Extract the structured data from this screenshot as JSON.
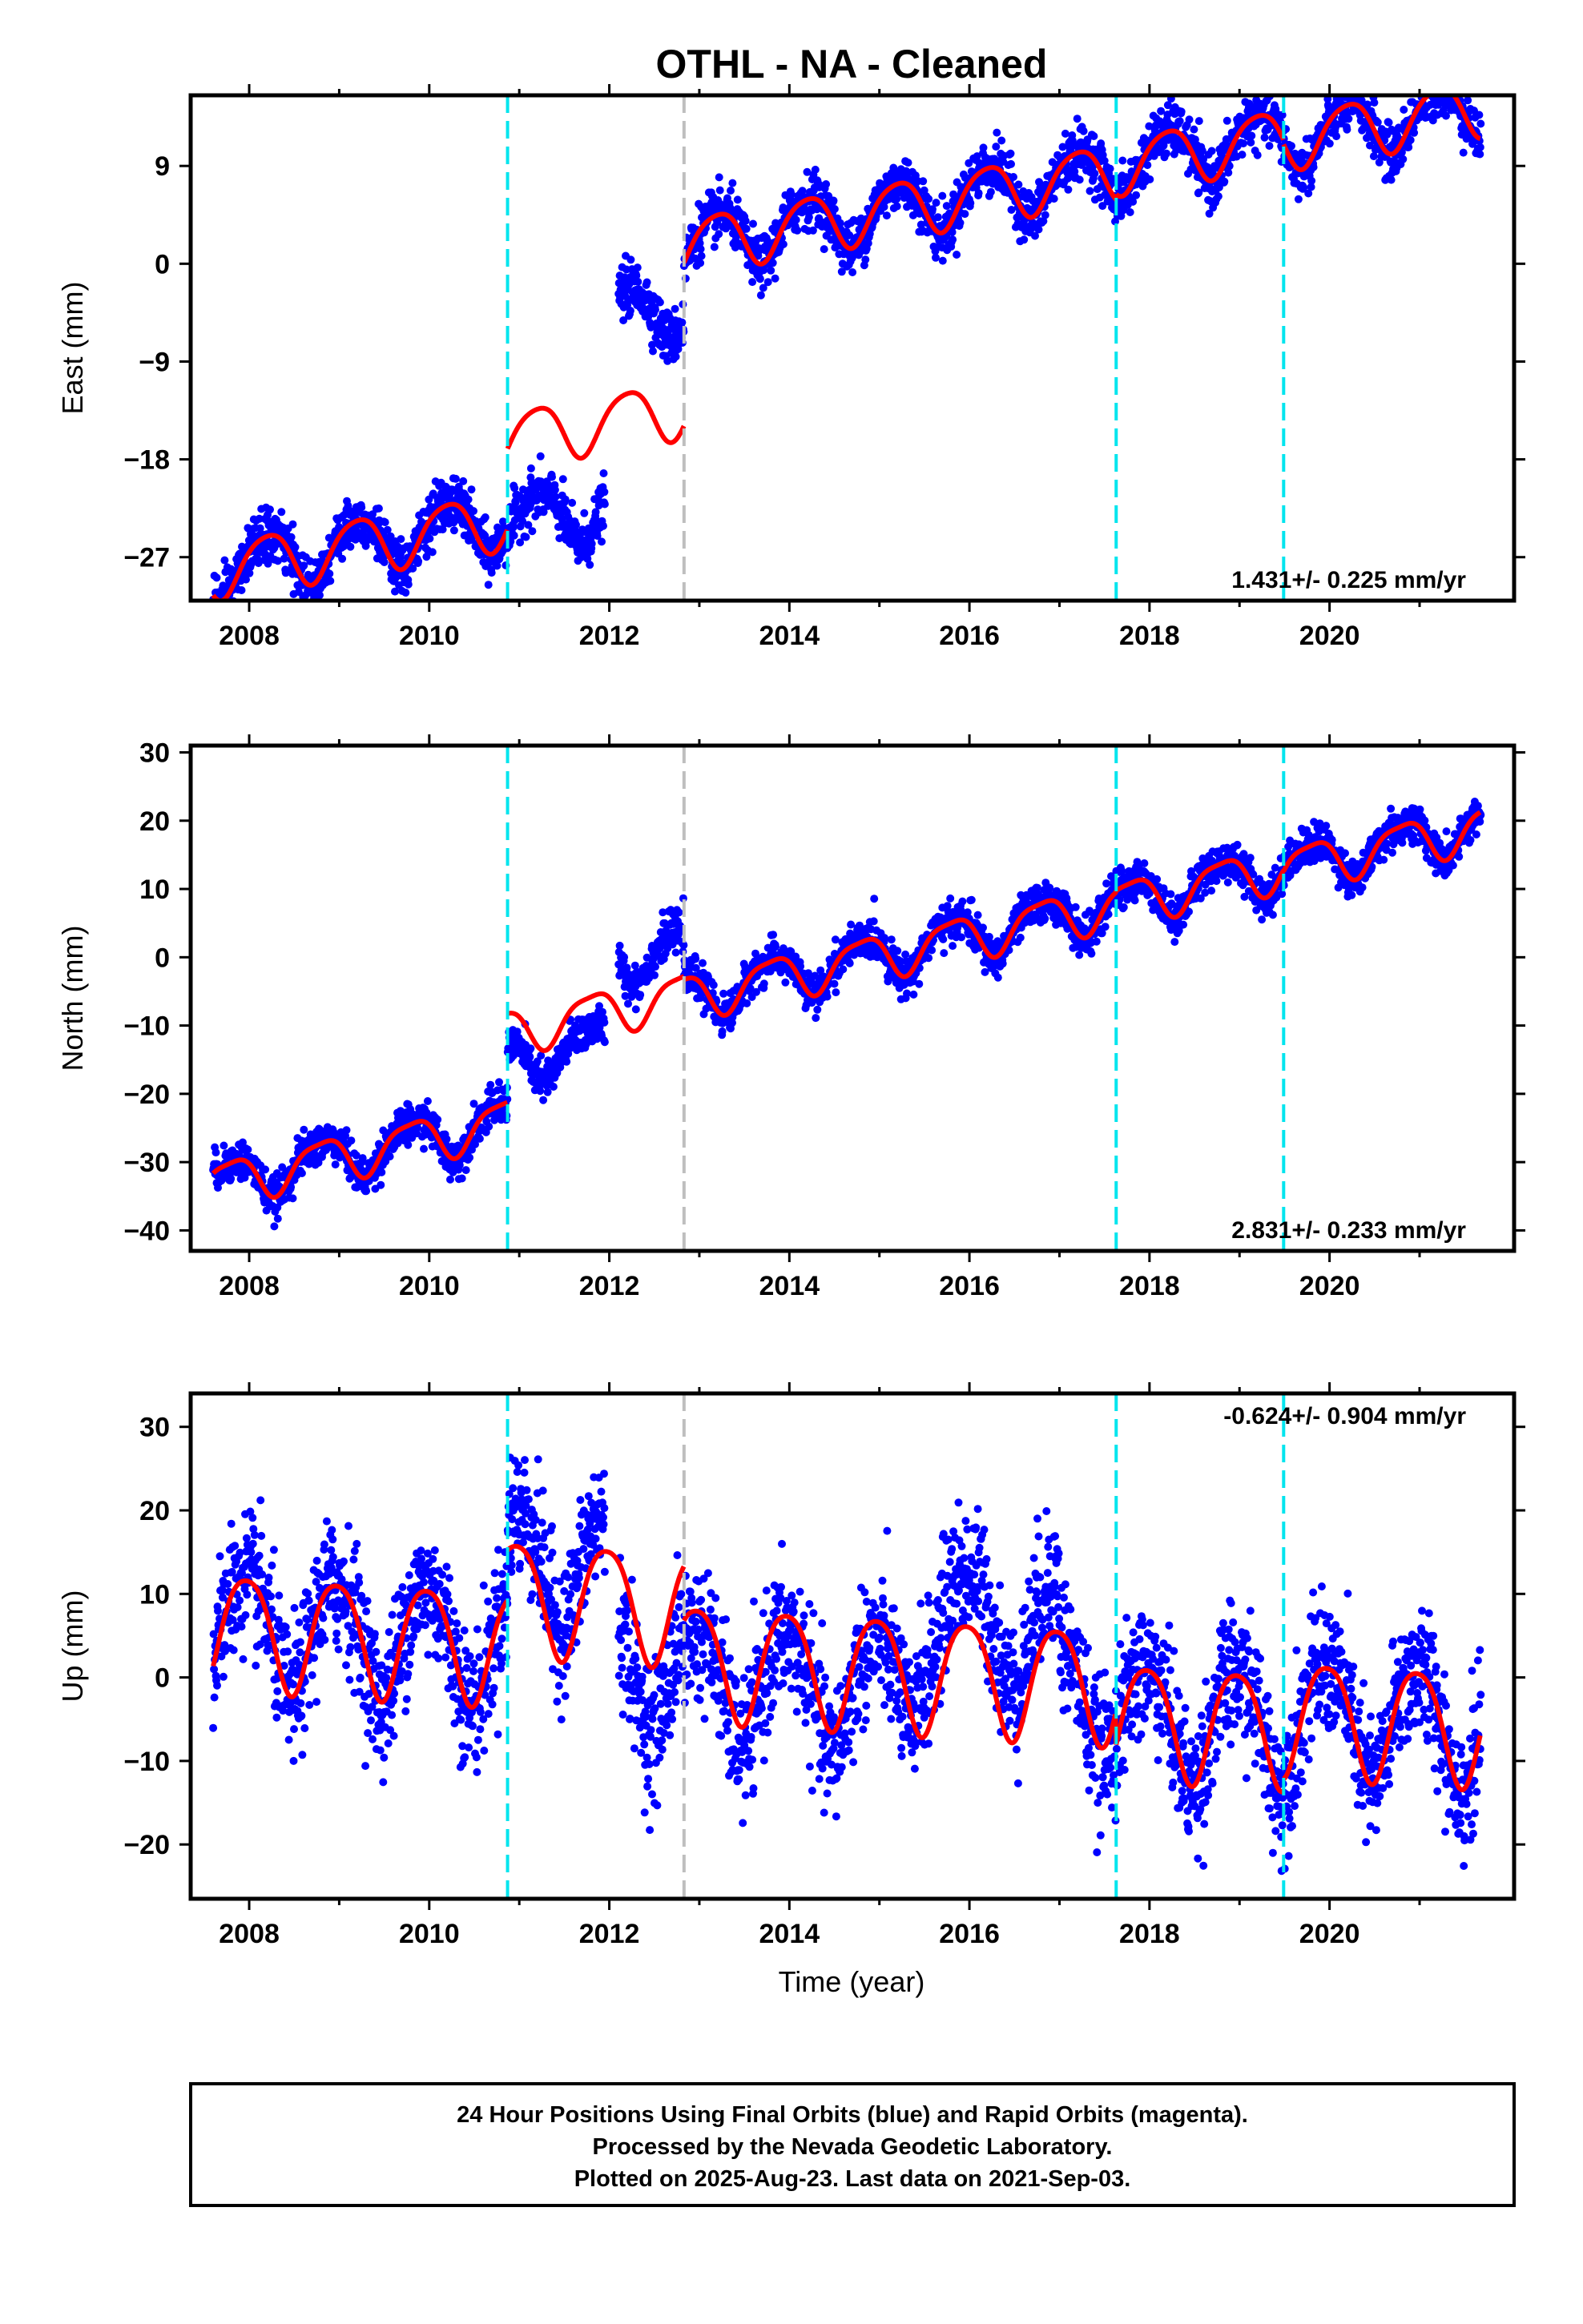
{
  "title": "OTHL  - NA - Cleaned",
  "xlabel": "Time (year)",
  "footer": [
    "24 Hour Positions Using Final Orbits (blue) and Rapid Orbits (magenta).",
    "Processed by the Nevada Geodetic Laboratory.",
    "Plotted on 2025-Aug-23. Last data on 2021-Sep-03."
  ],
  "colors": {
    "data": "#0000ff",
    "model": "#ff0000",
    "equipment_change": "#00e5ee",
    "gap_marker": "#bebebe",
    "axes": "#000000"
  },
  "chart_data": [
    {
      "type": "scatter",
      "name": "east",
      "ylabel": "East (mm)",
      "xlim": [
        2007.35,
        2022.05
      ],
      "ylim": [
        -31,
        15.5
      ],
      "x_ticks": [
        "2008",
        "2010",
        "2012",
        "2014",
        "2016",
        "2018",
        "2020"
      ],
      "y_ticks": [
        "9",
        "0",
        "−9",
        "−18",
        "−27"
      ],
      "y_tick_values": [
        9,
        0,
        -9,
        -18,
        -27
      ],
      "rate_label": "1.431+/- 0.225 mm/yr",
      "rate_position": "bottom-right",
      "vertical_lines": [
        {
          "x": 2010.87,
          "style": "cyan-dashed"
        },
        {
          "x": 2012.83,
          "style": "gray-dashed"
        },
        {
          "x": 2017.63,
          "style": "cyan-dashed"
        },
        {
          "x": 2019.49,
          "style": "cyan-dashed"
        }
      ],
      "model_series": {
        "name": "model",
        "segments": [
          {
            "start": 2007.6,
            "end": 2010.87,
            "offset": -19.0
          },
          {
            "start": 2010.87,
            "end": 2012.83,
            "offset": -11.6
          },
          {
            "start": 2012.83,
            "end": 2017.63,
            "offset": 3.4
          },
          {
            "start": 2017.63,
            "end": 2019.49,
            "offset": 3.9
          },
          {
            "start": 2019.49,
            "end": 2021.68,
            "offset": 3.5
          }
        ],
        "trend_mm_per_yr": 1.431,
        "reference_year": 2014.0,
        "seasonal_amplitude": 2.6,
        "seasonal_phase_year": 0.95,
        "semiannual_amplitude": 0.4,
        "semiannual_phase_year": 0.3
      },
      "data_series": {
        "name": "daily positions",
        "x_range": [
          2007.6,
          2021.68
        ],
        "gaps": [
          [
            2011.95,
            2012.1
          ]
        ],
        "scatter_sd": 1.2,
        "segment_offsets_observed": [
          {
            "start": 2007.6,
            "end": 2010.87,
            "offset": -19.0
          },
          {
            "start": 2010.87,
            "end": 2011.95,
            "offset": -19.5
          },
          {
            "start": 2011.95,
            "end": 2012.83,
            "offset": -2.0
          },
          {
            "start": 2012.83,
            "end": 2017.63,
            "offset": 3.4
          },
          {
            "start": 2017.63,
            "end": 2019.49,
            "offset": 3.9
          },
          {
            "start": 2019.49,
            "end": 2021.68,
            "offset": 3.5
          }
        ]
      }
    },
    {
      "type": "scatter",
      "name": "north",
      "ylabel": "North (mm)",
      "xlim": [
        2007.35,
        2022.05
      ],
      "ylim": [
        -43,
        31
      ],
      "x_ticks": [
        "2008",
        "2010",
        "2012",
        "2014",
        "2016",
        "2018",
        "2020"
      ],
      "y_ticks": [
        "30",
        "20",
        "10",
        "0",
        "−10",
        "−20",
        "−30",
        "−40"
      ],
      "y_tick_values": [
        30,
        20,
        10,
        0,
        -10,
        -20,
        -30,
        -40
      ],
      "rate_label": "2.831+/- 0.233 mm/yr",
      "rate_position": "bottom-right",
      "vertical_lines": [
        {
          "x": 2010.87,
          "style": "cyan-dashed"
        },
        {
          "x": 2012.83,
          "style": "gray-dashed"
        },
        {
          "x": 2017.63,
          "style": "cyan-dashed"
        },
        {
          "x": 2019.49,
          "style": "cyan-dashed"
        }
      ],
      "model_series": {
        "name": "model",
        "segments": [
          {
            "start": 2007.6,
            "end": 2010.87,
            "offset": -15.0
          },
          {
            "start": 2010.87,
            "end": 2012.83,
            "offset": -2.0
          },
          {
            "start": 2012.83,
            "end": 2017.63,
            "offset": -2.5
          },
          {
            "start": 2017.63,
            "end": 2019.49,
            "offset": -2.3
          },
          {
            "start": 2019.49,
            "end": 2021.68,
            "offset": -2.5
          }
        ],
        "trend_mm_per_yr": 2.831,
        "reference_year": 2014.0,
        "seasonal_amplitude": 3.2,
        "seasonal_phase_year": 0.55,
        "semiannual_amplitude": 0.8,
        "semiannual_phase_year": 0.4
      },
      "data_series": {
        "name": "daily positions",
        "x_range": [
          2007.6,
          2021.68
        ],
        "gaps": [
          [
            2011.95,
            2012.1
          ]
        ],
        "scatter_sd": 1.4,
        "segment_offsets_observed": [
          {
            "start": 2007.6,
            "end": 2010.87,
            "offset": -15.0
          },
          {
            "start": 2010.87,
            "end": 2011.95,
            "offset": -6.5
          },
          {
            "start": 2011.95,
            "end": 2012.83,
            "offset": 5.0
          },
          {
            "start": 2012.83,
            "end": 2017.63,
            "offset": -2.5
          },
          {
            "start": 2017.63,
            "end": 2019.49,
            "offset": -2.3
          },
          {
            "start": 2019.49,
            "end": 2021.68,
            "offset": -2.5
          }
        ]
      }
    },
    {
      "type": "scatter",
      "name": "up",
      "ylabel": "Up (mm)",
      "xlim": [
        2007.35,
        2022.05
      ],
      "ylim": [
        -26.5,
        34
      ],
      "x_ticks": [
        "2008",
        "2010",
        "2012",
        "2014",
        "2016",
        "2018",
        "2020"
      ],
      "y_ticks": [
        "30",
        "20",
        "10",
        "0",
        "−10",
        "−20"
      ],
      "y_tick_values": [
        30,
        20,
        10,
        0,
        -10,
        -20
      ],
      "rate_label": "-0.624+/- 0.904 mm/yr",
      "rate_position": "top-right",
      "vertical_lines": [
        {
          "x": 2010.87,
          "style": "cyan-dashed"
        },
        {
          "x": 2012.83,
          "style": "gray-dashed"
        },
        {
          "x": 2017.63,
          "style": "cyan-dashed"
        },
        {
          "x": 2019.49,
          "style": "cyan-dashed"
        }
      ],
      "model_series": {
        "name": "model",
        "segments": [
          {
            "start": 2007.6,
            "end": 2010.87,
            "offset": 2.0
          },
          {
            "start": 2010.87,
            "end": 2012.83,
            "offset": 8.0
          },
          {
            "start": 2012.83,
            "end": 2017.63,
            "offset": 1.5
          },
          {
            "start": 2017.63,
            "end": 2019.49,
            "offset": -2.5
          },
          {
            "start": 2019.49,
            "end": 2021.68,
            "offset": -1.0
          }
        ],
        "trend_mm_per_yr": -0.624,
        "reference_year": 2014.0,
        "seasonal_amplitude": 6.8,
        "seasonal_phase_year": 0.72,
        "semiannual_amplitude": 1.0,
        "semiannual_phase_year": 0.1
      },
      "data_series": {
        "name": "daily positions",
        "x_range": [
          2007.6,
          2021.68
        ],
        "gaps": [
          [
            2011.95,
            2012.1
          ]
        ],
        "scatter_sd": 4.0,
        "segment_offsets_observed": [
          {
            "start": 2007.6,
            "end": 2010.87,
            "offset": 2.0
          },
          {
            "start": 2010.87,
            "end": 2012.0,
            "offset": 12.0
          },
          {
            "start": 2012.0,
            "end": 2012.83,
            "offset": 0.5
          },
          {
            "start": 2012.83,
            "end": 2015.4,
            "offset": -1.0
          },
          {
            "start": 2015.4,
            "end": 2017.0,
            "offset": 8.0
          },
          {
            "start": 2017.0,
            "end": 2017.63,
            "offset": 0.5
          },
          {
            "start": 2017.63,
            "end": 2019.49,
            "offset": -2.5
          },
          {
            "start": 2019.49,
            "end": 2021.68,
            "offset": -1.0
          }
        ]
      }
    }
  ]
}
